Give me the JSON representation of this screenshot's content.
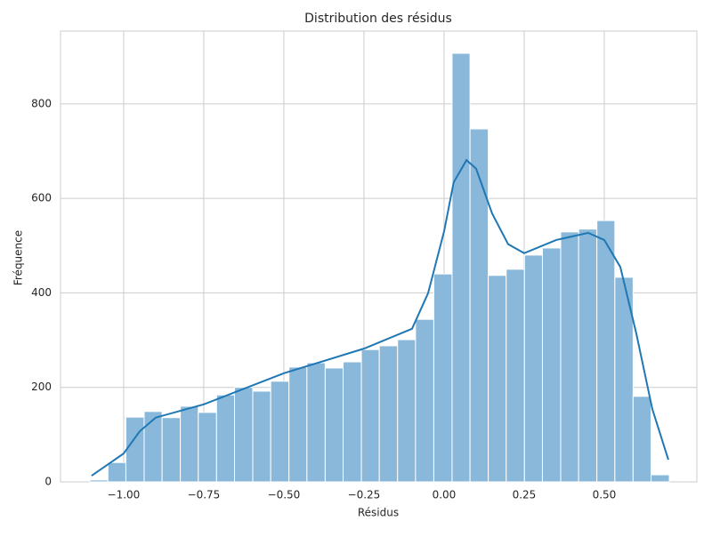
{
  "chart_data": {
    "type": "histogram",
    "title": "Distribution des résidus",
    "x_label": "Résidus",
    "y_label": "Fréquence",
    "bins": [
      -1.106,
      -1.049,
      -0.993,
      -0.936,
      -0.88,
      -0.823,
      -0.767,
      -0.71,
      -0.654,
      -0.597,
      -0.541,
      -0.484,
      -0.428,
      -0.371,
      -0.315,
      -0.258,
      -0.202,
      -0.145,
      -0.089,
      -0.032,
      0.025,
      0.081,
      0.138,
      0.194,
      0.251,
      0.307,
      0.364,
      0.42,
      0.477,
      0.533,
      0.59,
      0.646,
      0.703
    ],
    "counts": [
      4,
      41,
      137,
      149,
      136,
      160,
      147,
      184,
      200,
      192,
      213,
      243,
      252,
      241,
      254,
      280,
      288,
      301,
      344,
      440,
      907,
      747,
      437,
      450,
      480,
      495,
      529,
      535,
      553,
      433,
      181,
      15
    ],
    "color": "#89b8da",
    "kde": {
      "color": "#1f77b4",
      "x": [
        -1.1,
        -1.0,
        -0.95,
        -0.9,
        -0.75,
        -0.5,
        -0.25,
        -0.1,
        -0.05,
        0.0,
        0.03,
        0.07,
        0.1,
        0.15,
        0.2,
        0.25,
        0.35,
        0.45,
        0.5,
        0.55,
        0.6,
        0.65,
        0.7
      ],
      "values": [
        13,
        60,
        107,
        136,
        164,
        230,
        282,
        324,
        399,
        530,
        634,
        681,
        663,
        568,
        503,
        484,
        512,
        527,
        512,
        455,
        314,
        154,
        47
      ]
    },
    "xlim": [
      -1.197,
      0.789
    ],
    "ylim": [
      0,
      954
    ],
    "xticks": [
      {
        "value": -1,
        "label": "−1.00"
      },
      {
        "value": -0.75,
        "label": "−0.75"
      },
      {
        "value": -0.5,
        "label": "−0.50"
      },
      {
        "value": -0.25,
        "label": "−0.25"
      },
      {
        "value": 0,
        "label": "0.00"
      },
      0.25,
      {
        "value": 0.5,
        "label": "0.50"
      }
    ],
    "yticks": [
      0,
      200,
      400,
      600,
      800
    ],
    "grid": true
  }
}
